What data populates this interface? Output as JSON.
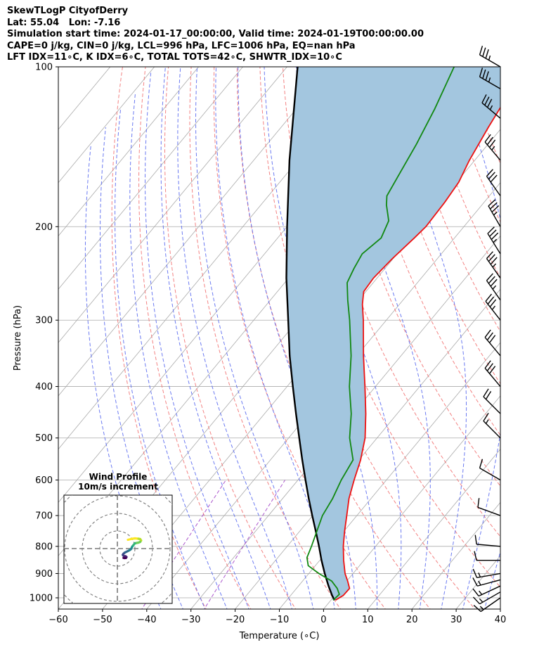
{
  "header": {
    "line1": "SkewTLogP CityofDerry",
    "line2": "Lat: 55.04   Lon: -7.16",
    "line3": "Simulation start time: 2024-01-17_00:00:00, Valid time: 2024-01-19T00:00:00.00",
    "line4": "CAPE=0 j/kg, CIN=0 j/kg, LCL=996 hPa, LFC=1006 hPa, EQ=nan hPa",
    "line5": "LFT IDX=11∘C, K IDX=6∘C, TOTAL TOTS=42∘C, SHWTR_IDX=10∘C"
  },
  "colors": {
    "temperature": "#ee1111",
    "dewpoint": "#118811",
    "parcel": "#000000",
    "cape_fill": "#a3c6df",
    "isotherm": "#aaaaaa",
    "dry_adiabat": "#f27474",
    "moist_adiabat": "#5b6bf0",
    "mixing_ratio": "#a346c8",
    "hodo_ring": "#7a7a7a"
  },
  "chart_data": {
    "type": "line",
    "title": "SkewTLogP CityofDerry",
    "xlabel": "Temperature (∘C)",
    "ylabel": "Pressure (hPa)",
    "xlim": [
      -60,
      40
    ],
    "ylim": [
      1050,
      100
    ],
    "yscale": "log",
    "skew": true,
    "grid": true,
    "xticks": [
      "−60",
      "−50",
      "−40",
      "−30",
      "−20",
      "−10",
      "0",
      "10",
      "20",
      "30",
      "40"
    ],
    "xtick_values": [
      -60,
      -50,
      -40,
      -30,
      -20,
      -10,
      0,
      10,
      20,
      30,
      40
    ],
    "yticks": [
      "100",
      "200",
      "300",
      "400",
      "500",
      "600",
      "700",
      "800",
      "900",
      "1000"
    ],
    "ytick_values": [
      100,
      200,
      300,
      400,
      500,
      600,
      700,
      800,
      900,
      1000
    ],
    "series": [
      {
        "key": "temperature",
        "points": [
          [
            1010,
            1.0
          ],
          [
            990,
            1.9
          ],
          [
            960,
            2.0
          ],
          [
            930,
            0.2
          ],
          [
            900,
            -1.8
          ],
          [
            850,
            -4.6
          ],
          [
            800,
            -7.3
          ],
          [
            750,
            -9.8
          ],
          [
            700,
            -12.3
          ],
          [
            650,
            -15.0
          ],
          [
            600,
            -17.3
          ],
          [
            550,
            -19.6
          ],
          [
            500,
            -22.7
          ],
          [
            450,
            -27.1
          ],
          [
            400,
            -32.4
          ],
          [
            350,
            -38.5
          ],
          [
            300,
            -45.2
          ],
          [
            280,
            -48.4
          ],
          [
            265,
            -50.5
          ],
          [
            250,
            -50.8
          ],
          [
            230,
            -50.2
          ],
          [
            210,
            -49.1
          ],
          [
            200,
            -48.6
          ],
          [
            180,
            -48.9
          ],
          [
            165,
            -49.5
          ],
          [
            150,
            -51.2
          ],
          [
            130,
            -53.1
          ],
          [
            115,
            -54.5
          ],
          [
            100,
            -55.9
          ]
        ]
      },
      {
        "key": "dewpoint",
        "points": [
          [
            1010,
            0.5
          ],
          [
            985,
            0.8
          ],
          [
            960,
            -0.8
          ],
          [
            930,
            -3.4
          ],
          [
            900,
            -7.7
          ],
          [
            870,
            -11.6
          ],
          [
            840,
            -13.4
          ],
          [
            800,
            -14.5
          ],
          [
            750,
            -16.1
          ],
          [
            700,
            -17.8
          ],
          [
            650,
            -18.7
          ],
          [
            600,
            -20.2
          ],
          [
            550,
            -21.3
          ],
          [
            500,
            -26.2
          ],
          [
            450,
            -30.4
          ],
          [
            400,
            -35.9
          ],
          [
            350,
            -41.3
          ],
          [
            300,
            -48.3
          ],
          [
            275,
            -52.5
          ],
          [
            255,
            -55.9
          ],
          [
            240,
            -57.0
          ],
          [
            225,
            -57.9
          ],
          [
            210,
            -56.6
          ],
          [
            195,
            -58.1
          ],
          [
            182,
            -61.6
          ],
          [
            175,
            -63.2
          ],
          [
            160,
            -64.4
          ],
          [
            140,
            -66.2
          ],
          [
            120,
            -68.7
          ],
          [
            100,
            -72.2
          ]
        ]
      },
      {
        "key": "parcel",
        "points": [
          [
            1010,
            0.8
          ],
          [
            990,
            -0.6
          ],
          [
            950,
            -3.2
          ],
          [
            900,
            -6.4
          ],
          [
            850,
            -9.6
          ],
          [
            800,
            -12.8
          ],
          [
            750,
            -16.3
          ],
          [
            700,
            -20.1
          ],
          [
            650,
            -24.1
          ],
          [
            600,
            -28.3
          ],
          [
            550,
            -32.8
          ],
          [
            500,
            -37.6
          ],
          [
            450,
            -42.9
          ],
          [
            400,
            -48.7
          ],
          [
            350,
            -55.2
          ],
          [
            300,
            -62.2
          ],
          [
            250,
            -70.5
          ],
          [
            200,
            -80.0
          ],
          [
            150,
            -91.9
          ],
          [
            100,
            -107.6
          ]
        ]
      }
    ],
    "wind_barbs": [
      {
        "p": 1000,
        "speed_kt": 15,
        "dir_deg": 235
      },
      {
        "p": 975,
        "speed_kt": 15,
        "dir_deg": 240
      },
      {
        "p": 950,
        "speed_kt": 15,
        "dir_deg": 245
      },
      {
        "p": 925,
        "speed_kt": 15,
        "dir_deg": 255
      },
      {
        "p": 900,
        "speed_kt": 15,
        "dir_deg": 260
      },
      {
        "p": 850,
        "speed_kt": 10,
        "dir_deg": 270
      },
      {
        "p": 800,
        "speed_kt": 10,
        "dir_deg": 275
      },
      {
        "p": 700,
        "speed_kt": 10,
        "dir_deg": 290
      },
      {
        "p": 600,
        "speed_kt": 10,
        "dir_deg": 300
      },
      {
        "p": 500,
        "speed_kt": 15,
        "dir_deg": 315
      },
      {
        "p": 450,
        "speed_kt": 20,
        "dir_deg": 315
      },
      {
        "p": 400,
        "speed_kt": 30,
        "dir_deg": 320
      },
      {
        "p": 350,
        "speed_kt": 30,
        "dir_deg": 320
      },
      {
        "p": 300,
        "speed_kt": 35,
        "dir_deg": 322
      },
      {
        "p": 275,
        "speed_kt": 35,
        "dir_deg": 325
      },
      {
        "p": 250,
        "speed_kt": 35,
        "dir_deg": 325
      },
      {
        "p": 225,
        "speed_kt": 35,
        "dir_deg": 328
      },
      {
        "p": 200,
        "speed_kt": 35,
        "dir_deg": 330
      },
      {
        "p": 175,
        "speed_kt": 30,
        "dir_deg": 325
      },
      {
        "p": 150,
        "speed_kt": 35,
        "dir_deg": 320
      },
      {
        "p": 125,
        "speed_kt": 35,
        "dir_deg": 310
      },
      {
        "p": 110,
        "speed_kt": 35,
        "dir_deg": 300
      },
      {
        "p": 100,
        "speed_kt": 35,
        "dir_deg": 300
      }
    ],
    "hodograph": {
      "title": "Wind Profile",
      "subtitle": "10m/s increment",
      "ring_increment_ms": 10,
      "rings": 4,
      "points": [
        [
          6,
          -5
        ],
        [
          8,
          -5.5
        ],
        [
          10,
          -5.8
        ],
        [
          12,
          -5.6
        ],
        [
          13,
          -5.4
        ],
        [
          13.5,
          -4.6
        ],
        [
          13,
          -3.8
        ],
        [
          12,
          -3.4
        ],
        [
          11,
          -3.2
        ],
        [
          10,
          -3
        ],
        [
          9.5,
          -2.4
        ],
        [
          9,
          -1.8
        ],
        [
          8.5,
          -1.2
        ],
        [
          8.2,
          -0.6
        ],
        [
          8,
          0
        ],
        [
          7.4,
          0.6
        ],
        [
          6.6,
          1.1
        ],
        [
          5.8,
          1.5
        ],
        [
          5,
          1.9
        ],
        [
          4.2,
          2.3
        ],
        [
          3.5,
          2.9
        ],
        [
          3.1,
          3.5
        ],
        [
          3.3,
          3.9
        ],
        [
          3.9,
          4.3
        ],
        [
          4.7,
          4.4
        ],
        [
          5.2,
          4.8
        ],
        [
          4.9,
          5.3
        ],
        [
          4.2,
          5.4
        ],
        [
          3.5,
          5.3
        ]
      ]
    }
  }
}
